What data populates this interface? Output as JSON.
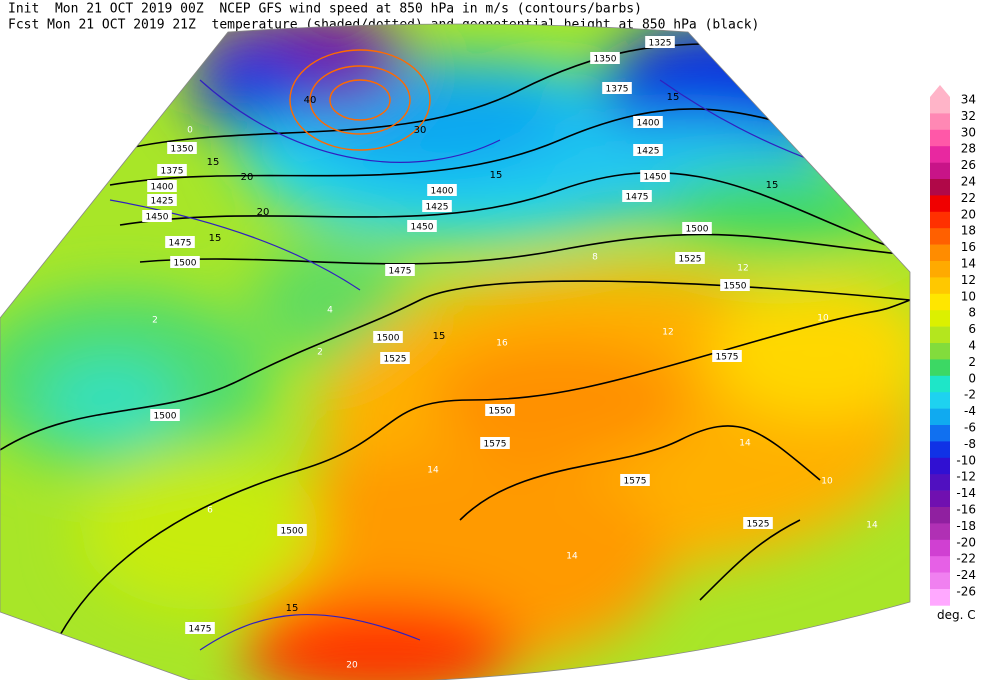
{
  "header": {
    "line1": "Init  Mon 21 OCT 2019 00Z  NCEP GFS wind speed at 850 hPa in m/s (contours/barbs)",
    "line2": "Fcst Mon 21 OCT 2019 21Z  temperature (shaded/dotted) and geopotential height at 850 hPa (black)"
  },
  "colorbar": {
    "unit": "deg. C",
    "levels": [
      {
        "label": 34,
        "color": "#ffb4c8"
      },
      {
        "label": 32,
        "color": "#ff88b4"
      },
      {
        "label": 30,
        "color": "#ff58a8"
      },
      {
        "label": 28,
        "color": "#e828a0"
      },
      {
        "label": 26,
        "color": "#c81488"
      },
      {
        "label": 24,
        "color": "#b00848"
      },
      {
        "label": 22,
        "color": "#f00000"
      },
      {
        "label": 20,
        "color": "#ff3000"
      },
      {
        "label": 18,
        "color": "#ff6000"
      },
      {
        "label": 16,
        "color": "#ff8c00"
      },
      {
        "label": 14,
        "color": "#ffaa00"
      },
      {
        "label": 12,
        "color": "#ffc800"
      },
      {
        "label": 10,
        "color": "#ffe600"
      },
      {
        "label": 8,
        "color": "#dcf000"
      },
      {
        "label": 6,
        "color": "#b4e61e"
      },
      {
        "label": 4,
        "color": "#82dc3c"
      },
      {
        "label": 2,
        "color": "#3cd864"
      },
      {
        "label": 0,
        "color": "#1ee6c8"
      },
      {
        "label": -2,
        "color": "#1ed2f0"
      },
      {
        "label": -4,
        "color": "#10aaf0"
      },
      {
        "label": -6,
        "color": "#1070f0"
      },
      {
        "label": -8,
        "color": "#1032e6"
      },
      {
        "label": -10,
        "color": "#3010d2"
      },
      {
        "label": -12,
        "color": "#5010c0"
      },
      {
        "label": -14,
        "color": "#7010b0"
      },
      {
        "label": -16,
        "color": "#9020a0"
      },
      {
        "label": -18,
        "color": "#b030b4"
      },
      {
        "label": -20,
        "color": "#d040d2"
      },
      {
        "label": -22,
        "color": "#e660e6"
      },
      {
        "label": -24,
        "color": "#f080f0"
      },
      {
        "label": -26,
        "color": "#ffa8ff"
      }
    ]
  },
  "map": {
    "height_labels": [
      1350,
      1375,
      1400,
      1425,
      1450,
      1475,
      1500,
      1500,
      1500,
      1475,
      1475,
      1500,
      1525,
      1550,
      1575,
      1575,
      1575,
      1525,
      1550,
      1525,
      1500,
      1475,
      1450,
      1425,
      1400,
      1375,
      1350,
      1325,
      1400,
      1425,
      1450
    ],
    "wind_labels": [
      15,
      20,
      15,
      20,
      15,
      15,
      15,
      30,
      40,
      15,
      15
    ],
    "temperature_labels": [
      0,
      2,
      2,
      4,
      6,
      8,
      10,
      12,
      12,
      14,
      14,
      14,
      10,
      14,
      20,
      16
    ]
  }
}
